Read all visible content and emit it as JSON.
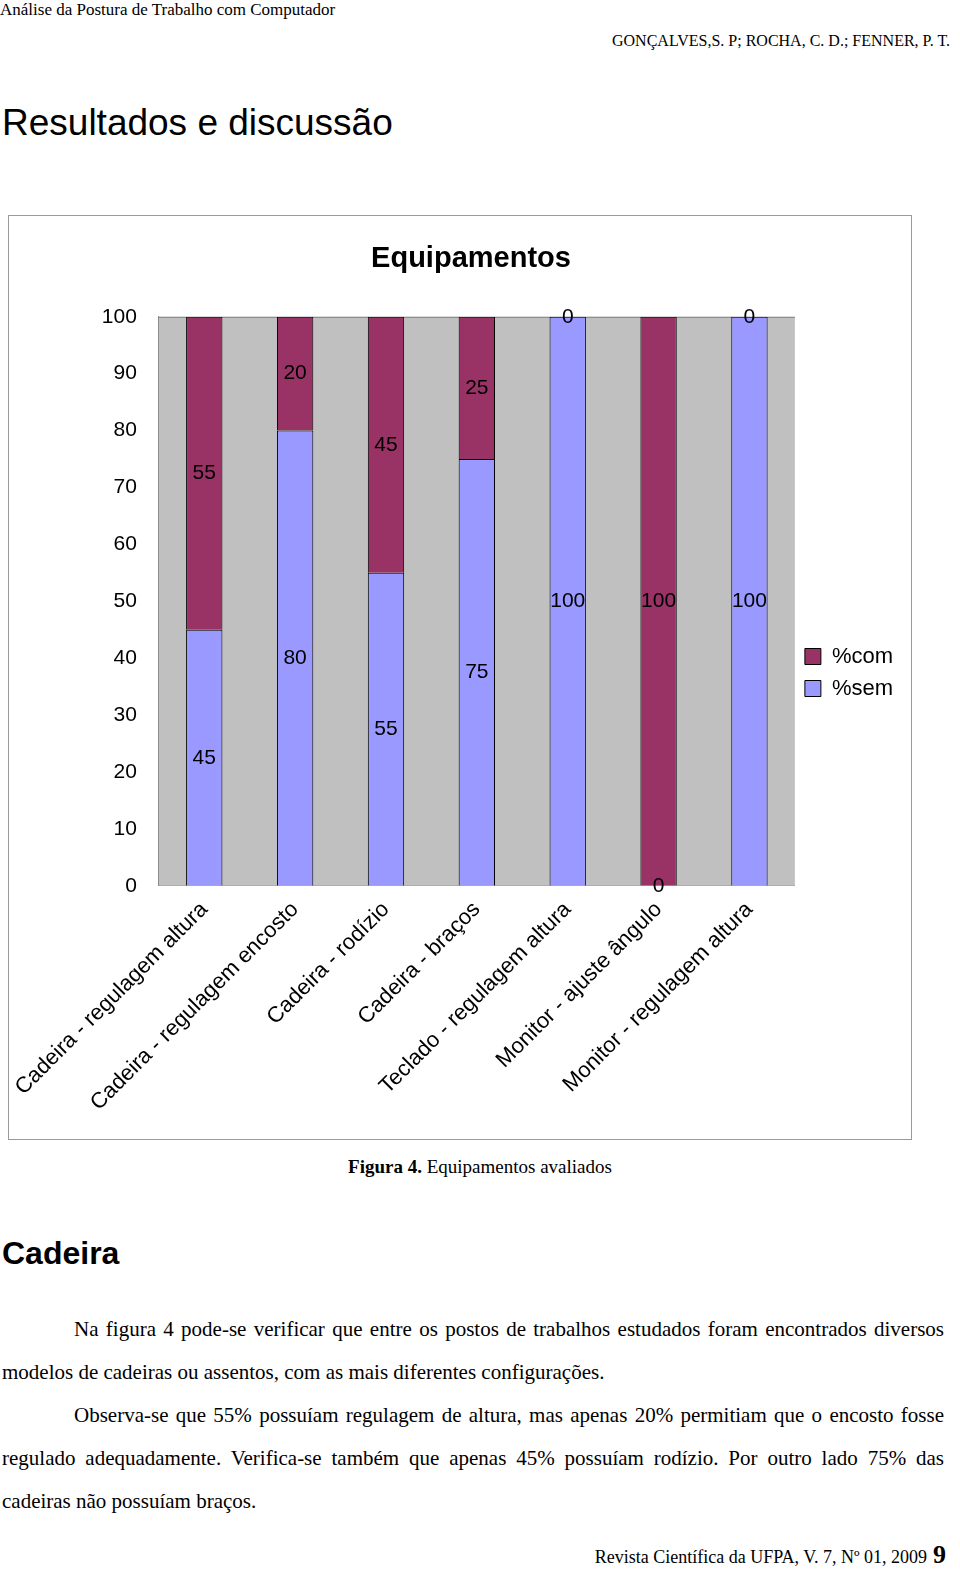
{
  "header": {
    "left": "Análise da Postura de Trabalho com Computador",
    "right": "GONÇALVES,S. P; ROCHA, C. D.; FENNER, P. T."
  },
  "heading": "Resultados e discussão",
  "chart_data": {
    "type": "bar",
    "title": "Equipamentos",
    "stacked": true,
    "categories": [
      "Cadeira - regulagem altura",
      "Cadeira - regulagem encosto",
      "Cadeira - rodízio",
      "Cadeira - braços",
      "Teclado - regulagem altura",
      "Monitor - ajuste ângulo",
      "Monitor - regulagem altura"
    ],
    "series": [
      {
        "name": "%sem",
        "color": "#9999ff",
        "values": [
          45,
          80,
          55,
          75,
          100,
          0,
          100
        ]
      },
      {
        "name": "%com",
        "color": "#993366",
        "values": [
          55,
          20,
          45,
          25,
          0,
          100,
          0
        ]
      }
    ],
    "ylim": [
      0,
      100
    ],
    "yticks": [
      0,
      10,
      20,
      30,
      40,
      50,
      60,
      70,
      80,
      90,
      100
    ],
    "grid": false,
    "legend": "right",
    "data_labels": true
  },
  "caption": {
    "label": "Figura 4.",
    "text": "Equipamentos avaliados"
  },
  "section": "Cadeira",
  "paragraphs": [
    "Na figura 4 pode-se verificar que entre os postos de trabalhos estudados foram encontrados diversos modelos de cadeiras ou assentos, com as mais diferentes configurações.",
    "Observa-se que 55% possuíam regulagem de altura, mas apenas 20% permitiam que o encosto fosse regulado adequadamente. Verifica-se também que apenas 45% possuíam rodízio. Por outro lado 75% das cadeiras não possuíam braços."
  ],
  "footer": {
    "journal": "Revista Científica da UFPA, V. 7, Nº 01, 2009",
    "page": "9"
  }
}
